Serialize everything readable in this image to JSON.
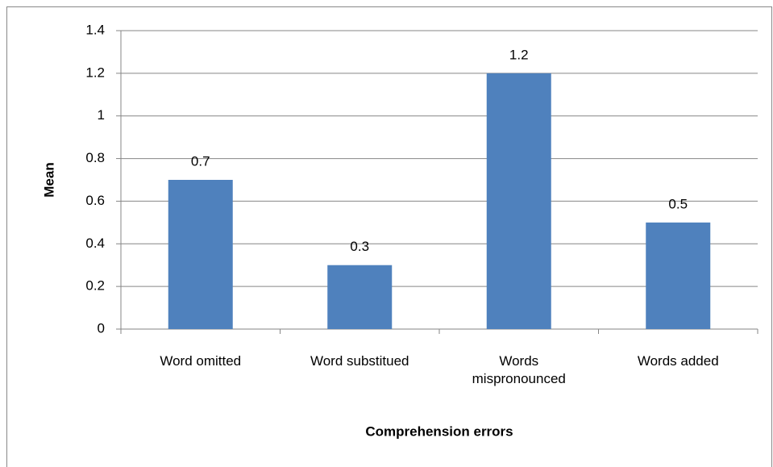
{
  "chart_data": {
    "type": "bar",
    "categories": [
      "Word omitted",
      "Word substitued",
      "Words mispronounced",
      "Words added"
    ],
    "values": [
      0.7,
      0.3,
      1.2,
      0.5
    ],
    "color": "#4f81bd",
    "ylim": [
      0,
      1.4
    ],
    "yticks": [
      0,
      0.2,
      0.4,
      0.6,
      0.8,
      1,
      1.2,
      1.4
    ],
    "grid": true,
    "y_label": "Mean",
    "x_label": "Comprehension errors"
  }
}
